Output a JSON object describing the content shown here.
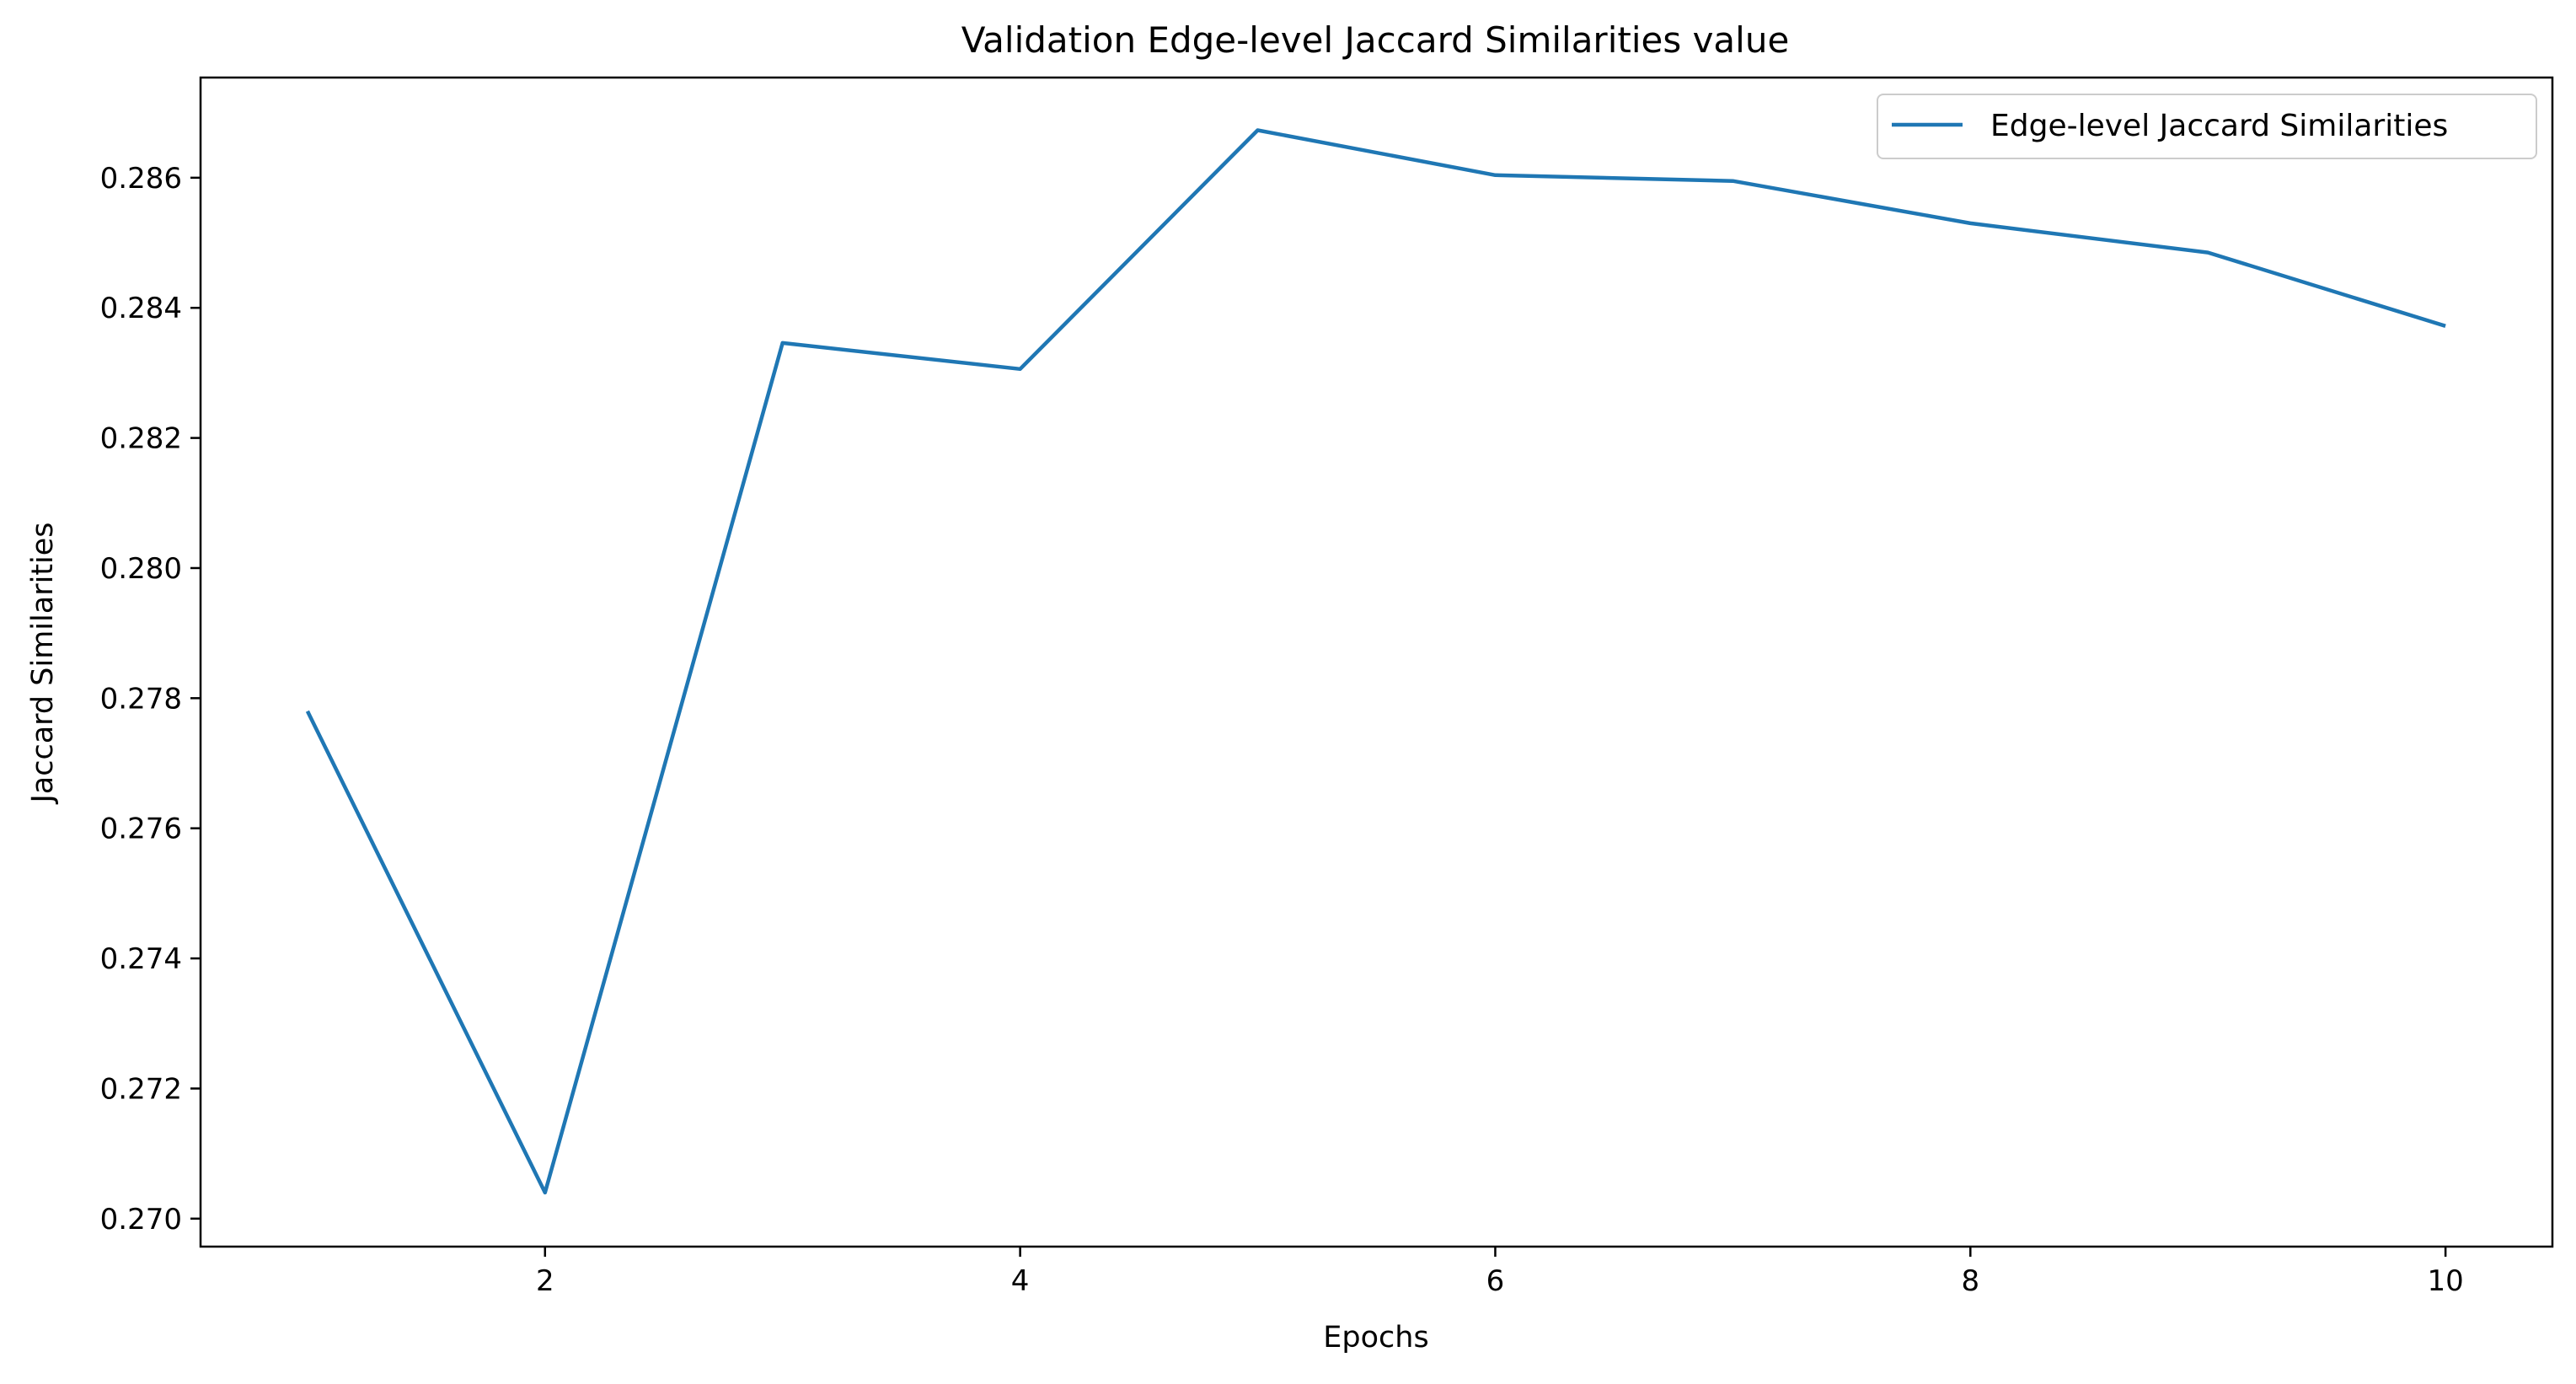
{
  "chart_data": {
    "type": "line",
    "title": "Validation Edge-level Jaccard Similarities value",
    "xlabel": "Epochs",
    "ylabel": "Jaccard Similarities",
    "x": [
      1,
      2,
      3,
      4,
      5,
      6,
      7,
      8,
      9,
      10
    ],
    "series": [
      {
        "name": "Edge-level Jaccard Similarities",
        "color": "#1f77b4",
        "values": [
          0.2778,
          0.2704,
          0.28346,
          0.28306,
          0.28673,
          0.28604,
          0.28595,
          0.2853,
          0.28485,
          0.28372
        ]
      }
    ],
    "xlim": [
      0.55,
      10.45
    ],
    "ylim": [
      0.26957,
      0.28754
    ],
    "xticks": [
      2,
      4,
      6,
      8,
      10
    ],
    "xtick_labels": [
      "2",
      "4",
      "6",
      "8",
      "10"
    ],
    "yticks": [
      0.27,
      0.272,
      0.274,
      0.276,
      0.278,
      0.28,
      0.282,
      0.284,
      0.286
    ],
    "ytick_labels": [
      "0.270",
      "0.272",
      "0.274",
      "0.276",
      "0.278",
      "0.280",
      "0.282",
      "0.284",
      "0.286"
    ],
    "grid": false,
    "legend": "upper-right"
  }
}
